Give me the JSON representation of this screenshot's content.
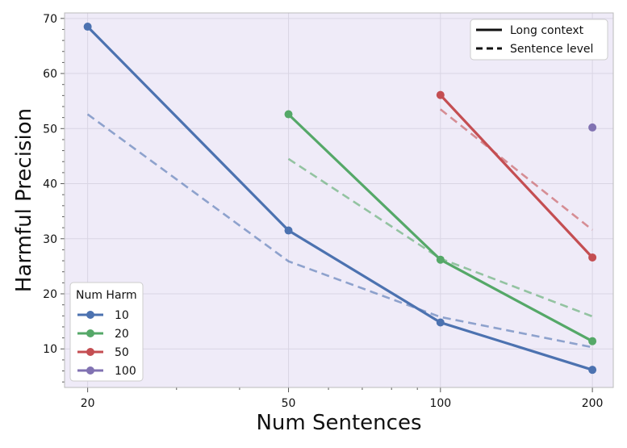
{
  "chart_data": {
    "type": "line",
    "xlabel": "Num Sentences",
    "ylabel": "Harmful Precision",
    "xscale": "log",
    "xlim": [
      18,
      220
    ],
    "ylim": [
      3,
      71
    ],
    "x_ticks": [
      20,
      50,
      100,
      200
    ],
    "y_ticks": [
      10,
      20,
      30,
      40,
      50,
      60,
      70
    ],
    "grid": true,
    "background": "#efebf8",
    "style_legend": {
      "placement": "top-right",
      "entries": [
        {
          "label": "Long context",
          "dash": "solid"
        },
        {
          "label": "Sentence level",
          "dash": "dashed"
        }
      ]
    },
    "color_legend": {
      "placement": "bottom-left",
      "title": "Num Harm",
      "entries": [
        "10",
        "20",
        "50",
        "100"
      ]
    },
    "series": [
      {
        "name": "10",
        "color": "#4c72b0",
        "long_context": [
          [
            20,
            68.5
          ],
          [
            50,
            31.5
          ],
          [
            100,
            14.8
          ],
          [
            200,
            6.2
          ]
        ],
        "sentence_level": [
          [
            20,
            52.6
          ],
          [
            50,
            25.9
          ],
          [
            100,
            15.8
          ],
          [
            200,
            10.3
          ]
        ]
      },
      {
        "name": "20",
        "color": "#55a868",
        "long_context": [
          [
            50,
            52.6
          ],
          [
            100,
            26.2
          ],
          [
            200,
            11.4
          ]
        ],
        "sentence_level": [
          [
            50,
            44.5
          ],
          [
            100,
            26.4
          ],
          [
            200,
            15.9
          ]
        ]
      },
      {
        "name": "50",
        "color": "#c44e52",
        "long_context": [
          [
            100,
            56.1
          ],
          [
            200,
            26.6
          ]
        ],
        "sentence_level": [
          [
            100,
            53.5
          ],
          [
            200,
            31.6
          ]
        ]
      },
      {
        "name": "100",
        "color": "#8172b2",
        "long_context": [
          [
            200,
            50.2
          ]
        ],
        "sentence_level": []
      }
    ]
  }
}
